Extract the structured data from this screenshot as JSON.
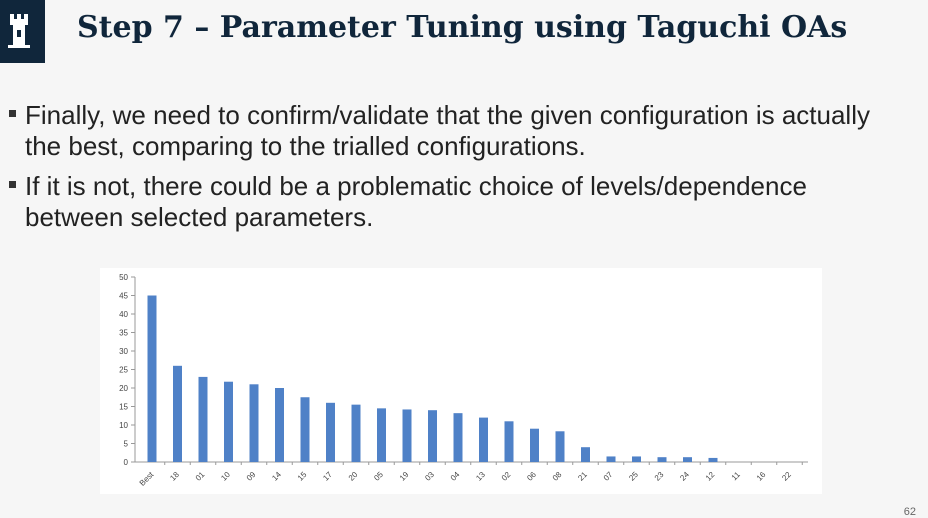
{
  "header": {
    "title": "Step 7 – Parameter Tuning using Taguchi OAs"
  },
  "bullets": [
    "Finally, we need to confirm/validate that the given configuration is actually the best, comparing to the trialled configurations.",
    "If it is not, there could be a problematic choice of levels/dependence between selected parameters."
  ],
  "page_number": "62",
  "colors": {
    "brand": "#10263b",
    "bar": "#4f81c7"
  },
  "chart_data": {
    "type": "bar",
    "title": "",
    "xlabel": "",
    "ylabel": "",
    "categories": [
      "Best",
      "18",
      "01",
      "10",
      "09",
      "14",
      "15",
      "17",
      "20",
      "05",
      "19",
      "03",
      "04",
      "13",
      "02",
      "06",
      "08",
      "21",
      "07",
      "25",
      "23",
      "24",
      "12",
      "11",
      "16",
      "22"
    ],
    "values": [
      45,
      26,
      23,
      21.7,
      21,
      20,
      17.5,
      16,
      15.5,
      14.5,
      14.2,
      14,
      13.2,
      12,
      11,
      9,
      8.3,
      4,
      1.5,
      1.5,
      1.3,
      1.3,
      1.1,
      0,
      0,
      0
    ],
    "ylim": [
      0,
      50
    ],
    "yticks": [
      0,
      5,
      10,
      15,
      20,
      25,
      30,
      35,
      40,
      45,
      50
    ],
    "grid": false,
    "legend": "none"
  }
}
